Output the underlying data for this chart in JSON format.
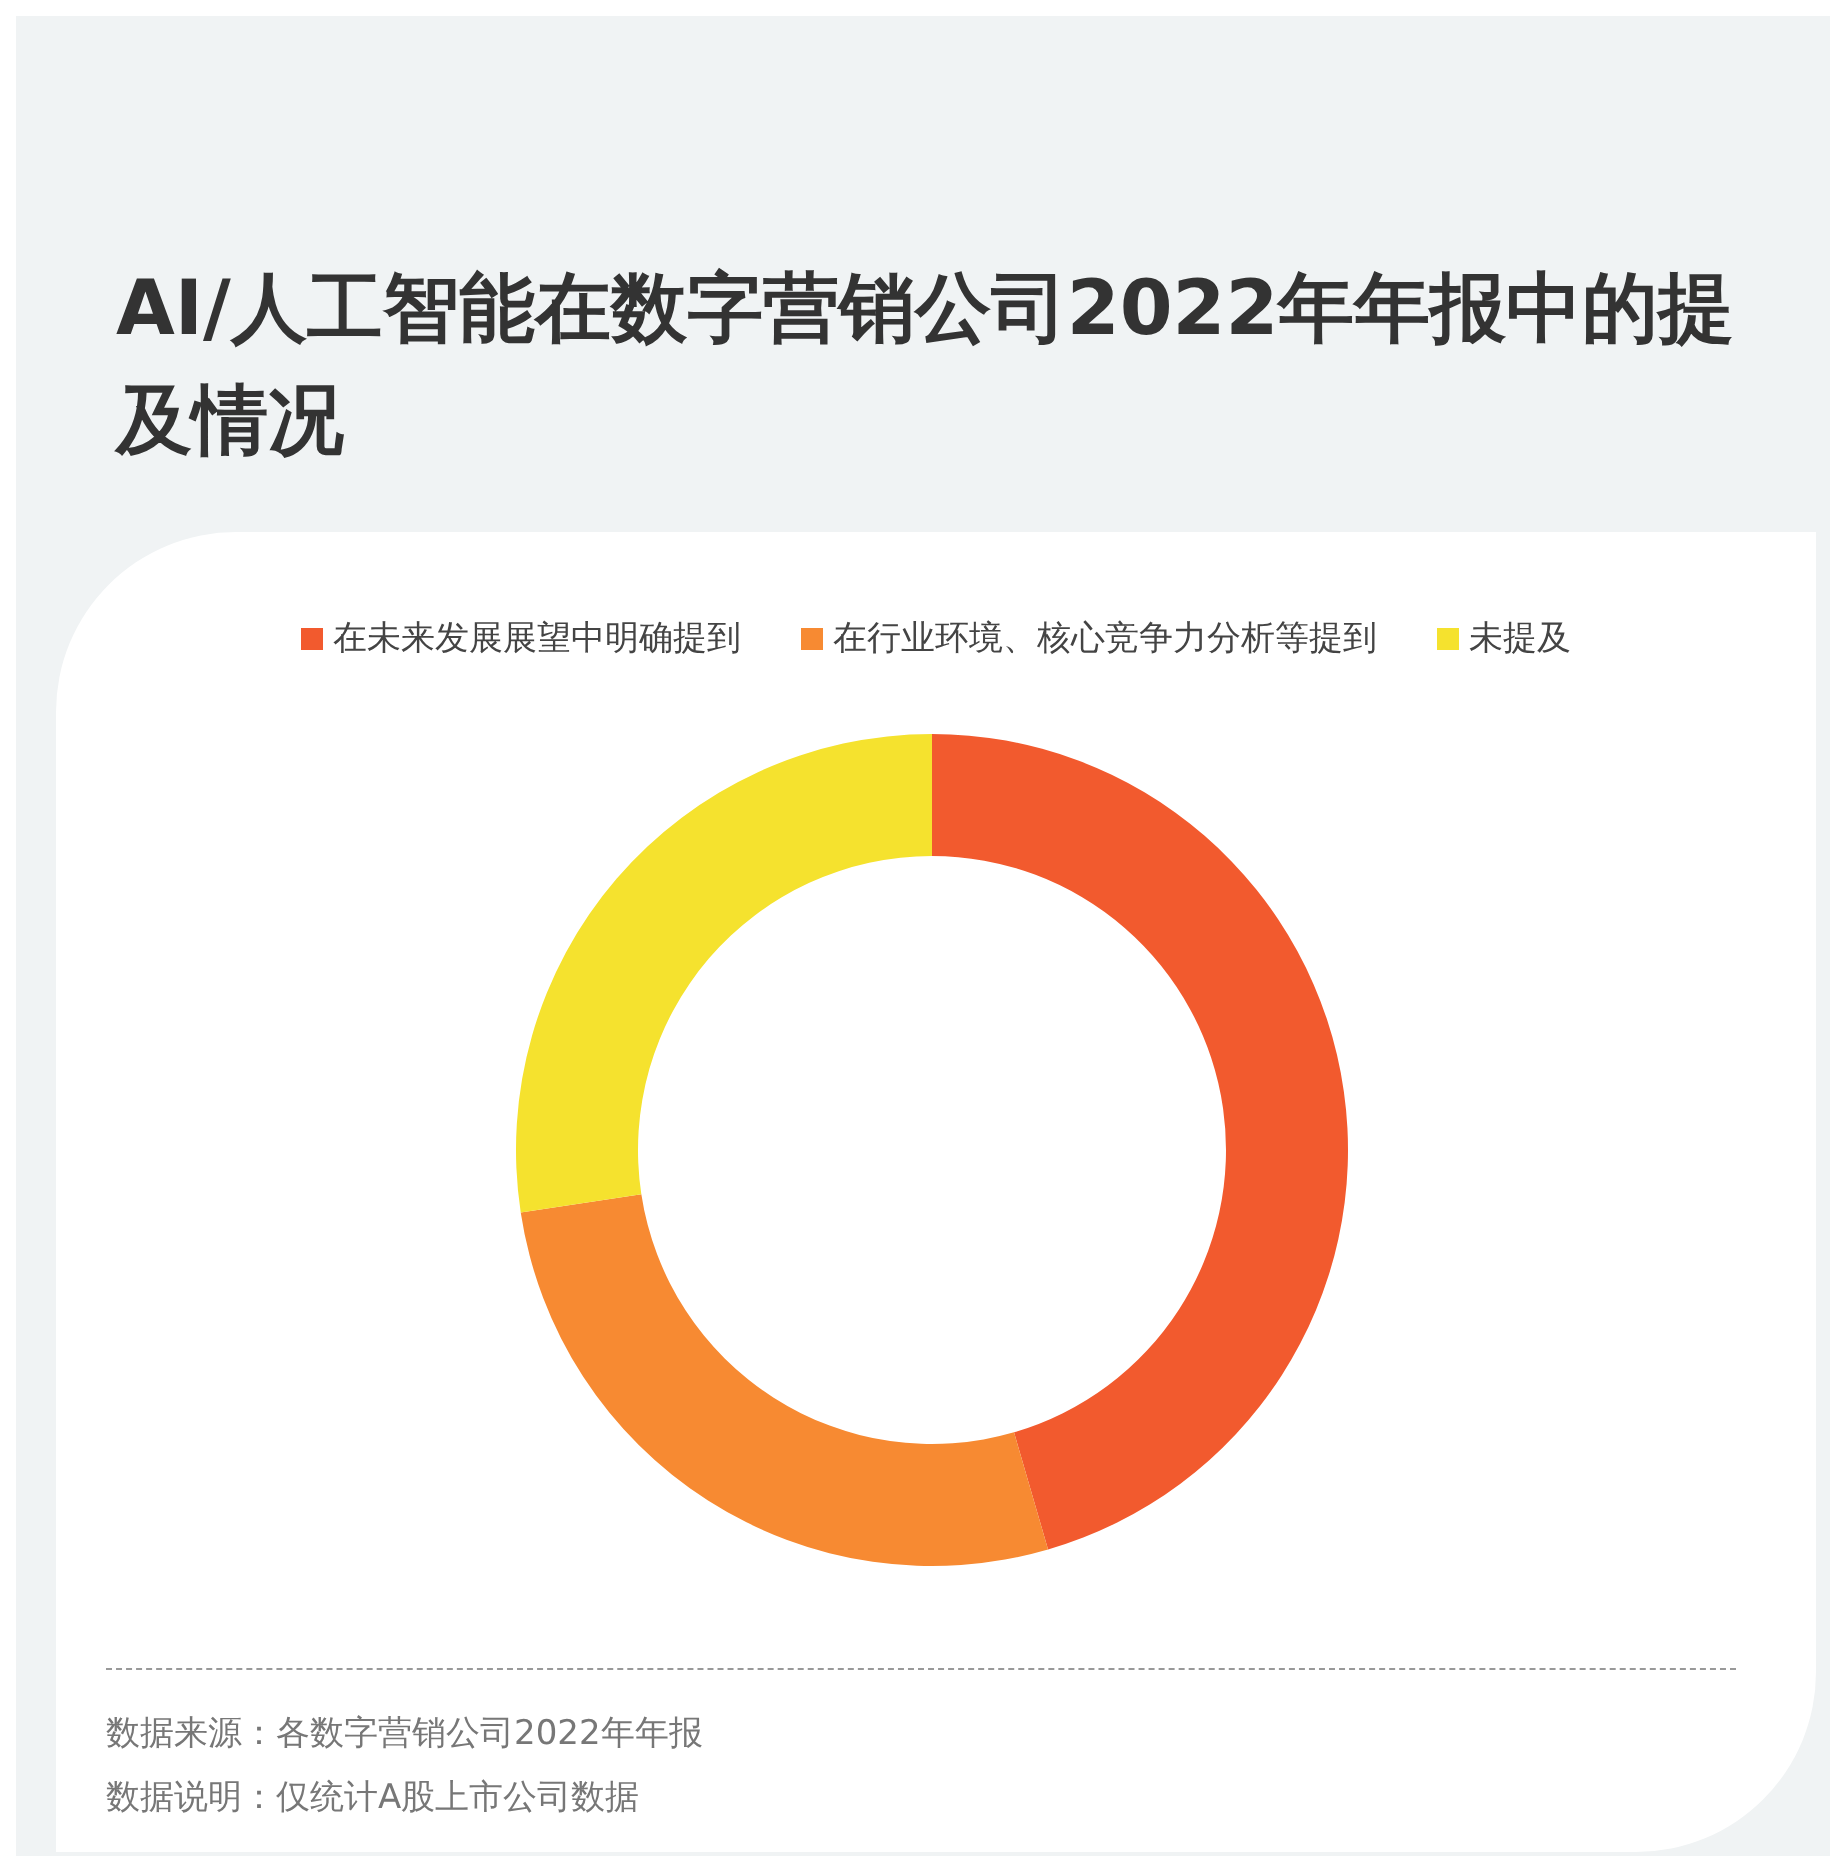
{
  "chart_data": {
    "type": "donut",
    "title": "AI/人工智能在数字营销公司2022年年报中的提及情况",
    "categories": [
      "在未来发展展望中明确提到",
      "在行业环境、核心竞争力分析等提到",
      "未提及"
    ],
    "values": [
      45.5,
      27.1,
      27.4
    ],
    "colors": [
      "#f25a2e",
      "#f78a32",
      "#f5e22e"
    ],
    "legend": "top",
    "annotations": [
      "数据来源：各数字营销公司2022年年报",
      "数据说明：仅统计A股上市公司数据"
    ]
  }
}
